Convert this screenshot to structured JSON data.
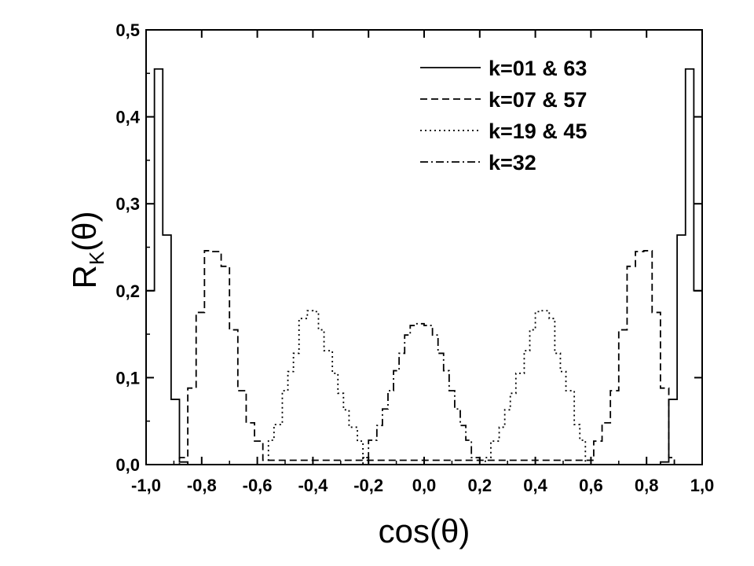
{
  "chart_data": {
    "type": "line",
    "step": true,
    "xlabel": "cos(θ)",
    "ylabel": {
      "base": "R",
      "sub": "K",
      "tail": "(θ)"
    },
    "xlim": [
      -1.0,
      1.0
    ],
    "ylim": [
      0.0,
      0.5
    ],
    "xticks": [
      -1.0,
      -0.8,
      -0.6,
      -0.4,
      -0.2,
      0.0,
      0.2,
      0.4,
      0.6,
      0.8,
      1.0
    ],
    "yticks": [
      0.0,
      0.1,
      0.2,
      0.3,
      0.4,
      0.5
    ],
    "xtick_labels": [
      "-1,0",
      "-0,8",
      "-0,6",
      "-0,4",
      "-0,2",
      "0,0",
      "0,2",
      "0,4",
      "0,6",
      "0,8",
      "1,0"
    ],
    "ytick_labels": [
      "0,0",
      "0,1",
      "0,2",
      "0,3",
      "0,4",
      "0,5"
    ],
    "grid": false,
    "legend_position": "top-right",
    "series": [
      {
        "name": "k=01 & 63",
        "style": "solid",
        "x": [
          -1.0,
          -0.97,
          -0.94,
          -0.91,
          -0.88,
          -0.85,
          -0.82,
          0.82,
          0.85,
          0.88,
          0.91,
          0.94,
          0.97,
          1.0
        ],
        "y": [
          0.2,
          0.455,
          0.264,
          0.075,
          0.003,
          0.0,
          0.0,
          0.0,
          0.003,
          0.075,
          0.264,
          0.455,
          0.2,
          0.2
        ]
      },
      {
        "name": "k=07 & 57",
        "style": "dashed",
        "x": [
          -0.9,
          -0.88,
          -0.85,
          -0.82,
          -0.79,
          -0.76,
          -0.73,
          -0.7,
          -0.67,
          -0.64,
          -0.61,
          -0.58,
          0.58,
          0.61,
          0.64,
          0.67,
          0.7,
          0.73,
          0.76,
          0.79,
          0.82,
          0.85,
          0.88,
          0.9
        ],
        "y": [
          0.0,
          0.008,
          0.088,
          0.175,
          0.246,
          0.245,
          0.228,
          0.155,
          0.085,
          0.048,
          0.027,
          0.005,
          0.005,
          0.027,
          0.048,
          0.085,
          0.155,
          0.228,
          0.245,
          0.246,
          0.175,
          0.088,
          0.008,
          0.0
        ]
      },
      {
        "name": "k=19 & 45",
        "style": "dotted",
        "x": [
          -0.58,
          -0.56,
          -0.54,
          -0.51,
          -0.49,
          -0.47,
          -0.45,
          -0.42,
          -0.4,
          -0.38,
          -0.36,
          -0.33,
          -0.31,
          -0.29,
          -0.27,
          -0.24,
          -0.22,
          -0.2,
          -0.18,
          0.18,
          0.2,
          0.22,
          0.24,
          0.27,
          0.29,
          0.31,
          0.33,
          0.36,
          0.38,
          0.4,
          0.42,
          0.45,
          0.47,
          0.49,
          0.51,
          0.54,
          0.56,
          0.58
        ],
        "y": [
          0.0,
          0.028,
          0.046,
          0.085,
          0.107,
          0.128,
          0.168,
          0.177,
          0.176,
          0.155,
          0.131,
          0.105,
          0.082,
          0.063,
          0.043,
          0.027,
          0.008,
          0.0,
          0.0,
          0.0,
          0.0,
          0.008,
          0.027,
          0.043,
          0.063,
          0.082,
          0.105,
          0.131,
          0.155,
          0.176,
          0.177,
          0.168,
          0.128,
          0.107,
          0.085,
          0.046,
          0.028,
          0.0
        ]
      },
      {
        "name": "k=32",
        "style": "dashdot",
        "x": [
          -0.24,
          -0.22,
          -0.2,
          -0.17,
          -0.15,
          -0.13,
          -0.11,
          -0.09,
          -0.07,
          -0.05,
          -0.03,
          0.0,
          0.03,
          0.05,
          0.07,
          0.09,
          0.11,
          0.13,
          0.15,
          0.17,
          0.2,
          0.22,
          0.24
        ],
        "y": [
          0.0,
          0.008,
          0.028,
          0.045,
          0.064,
          0.085,
          0.108,
          0.128,
          0.149,
          0.16,
          0.162,
          0.16,
          0.149,
          0.128,
          0.108,
          0.085,
          0.064,
          0.045,
          0.028,
          0.008,
          0.0,
          0.0,
          0.0
        ]
      }
    ]
  }
}
